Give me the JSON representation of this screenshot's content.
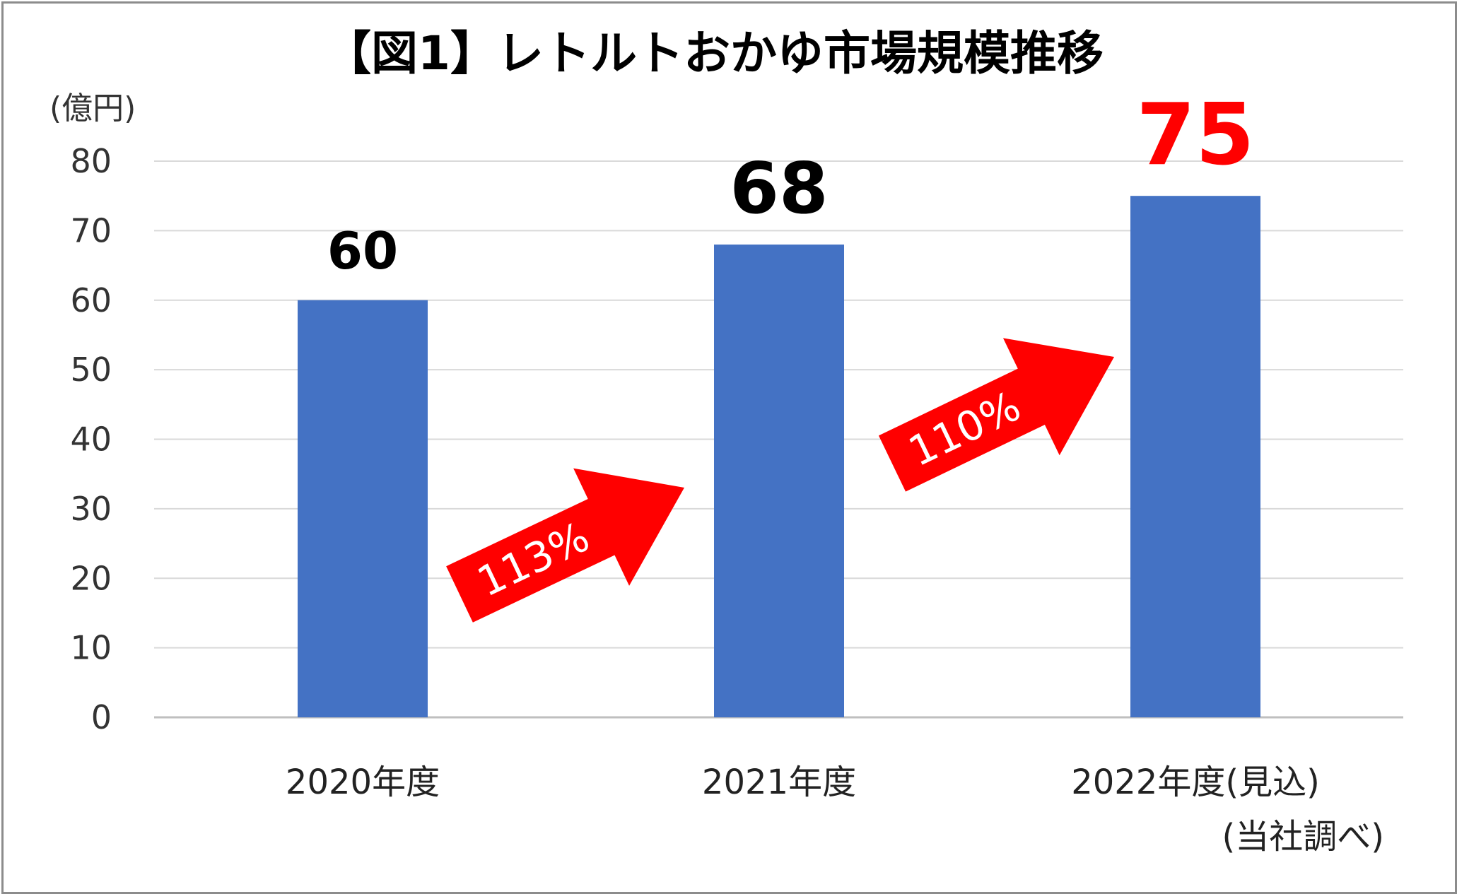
{
  "chart_data": {
    "type": "bar",
    "title": "【図1】レトルトおかゆ市場規模推移",
    "ylabel": "(億円)",
    "ylim": [
      0,
      80
    ],
    "yticks": [
      0,
      10,
      20,
      30,
      40,
      50,
      60,
      70,
      80
    ],
    "grid": true,
    "categories": [
      "2020年度",
      "2021年度",
      "2022年度(見込)"
    ],
    "values": [
      60,
      68,
      75
    ],
    "data_labels": [
      "60",
      "68",
      "75"
    ],
    "bar_color": "#4472C4",
    "highlight_label_color": "#FF0000",
    "annotations": [
      {
        "text": "113%",
        "from": "2020年度",
        "to": "2021年度",
        "color": "#FF0000"
      },
      {
        "text": "110%",
        "from": "2021年度",
        "to": "2022年度(見込)",
        "color": "#FF0000"
      }
    ],
    "source_note": "(当社調べ)"
  }
}
